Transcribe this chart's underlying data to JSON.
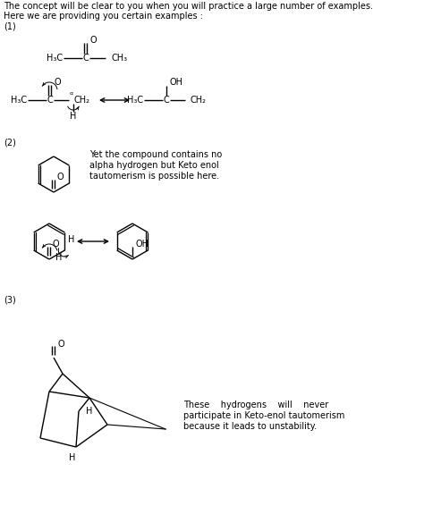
{
  "bg_color": "#ffffff",
  "text_color": "#000000",
  "line1": "The concept will be clear to you when you will practice a large number of examples.",
  "line2": "Here we are providing you certain examples :",
  "label1": "(1)",
  "label2": "(2)",
  "label3": "(3)",
  "text2_line1": "Yet the compound contains no",
  "text2_line2": "alpha hydrogen but Keto enol",
  "text2_line3": "tautomerism is possible here.",
  "text3_line1": "These    hydrogens    will    never",
  "text3_line2": "participate in Keto-enol tautomerism",
  "text3_line3": "because it leads to unstability."
}
